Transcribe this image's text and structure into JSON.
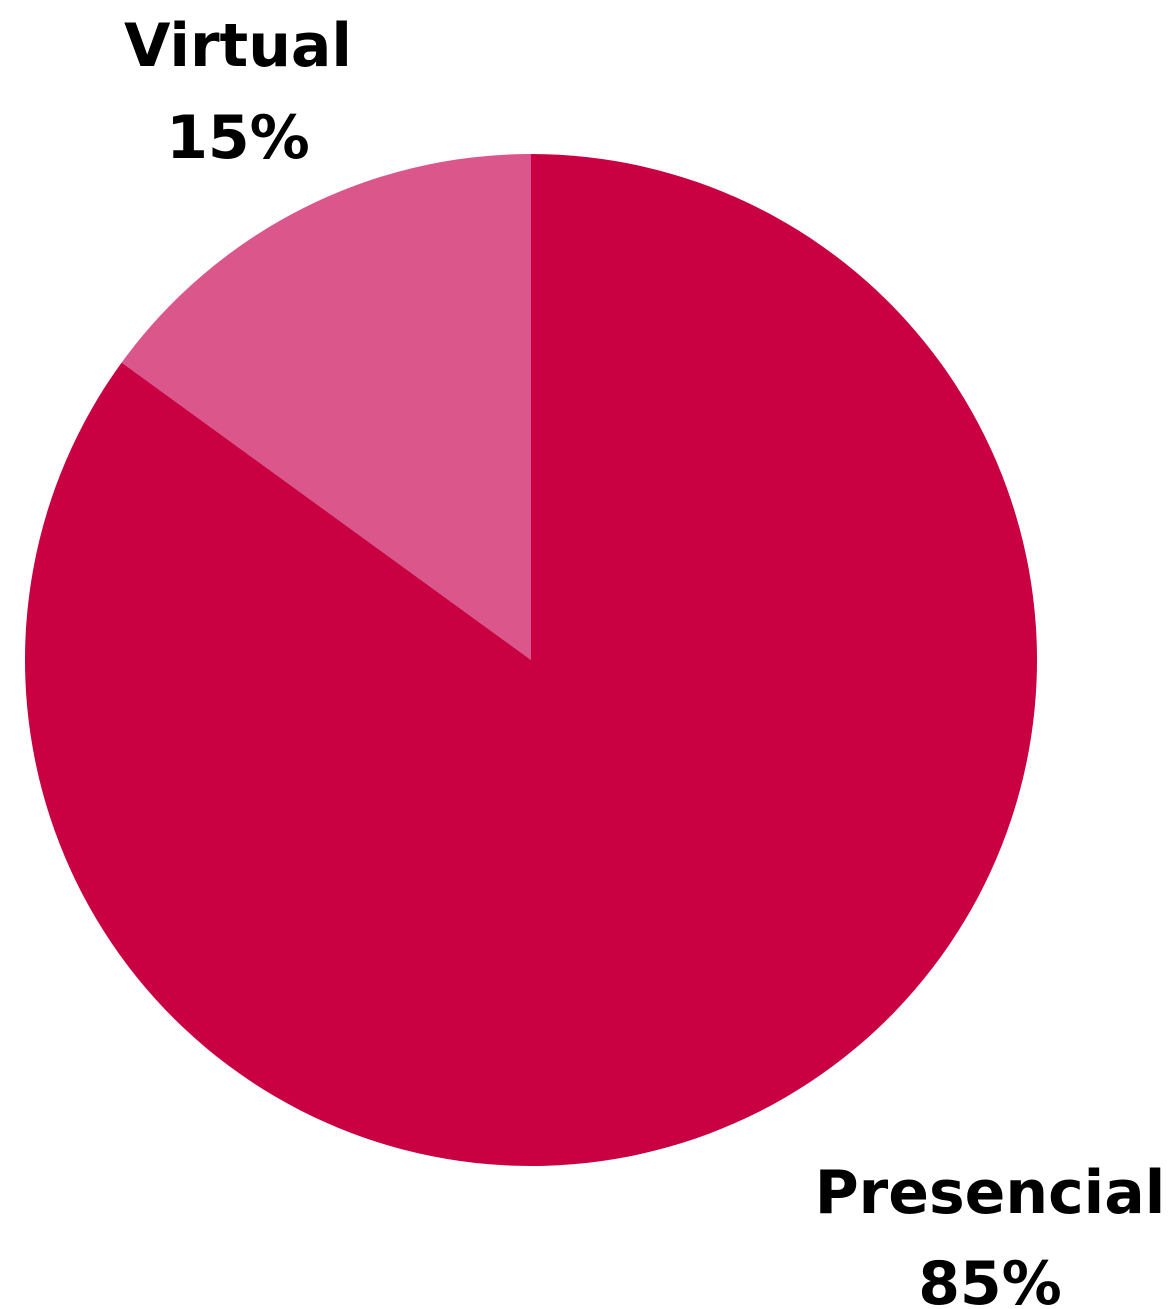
{
  "chart_data": {
    "type": "pie",
    "title": "",
    "start_angle_deg": -90,
    "direction": "counterclockwise",
    "slices": [
      {
        "label": "Virtual",
        "value": 15,
        "value_label": "15%",
        "color": "#DB568B"
      },
      {
        "label": "Presencial",
        "value": 85,
        "value_label": "85%",
        "color": "#C90042"
      }
    ],
    "legend": "none",
    "data_labels": "outside"
  }
}
